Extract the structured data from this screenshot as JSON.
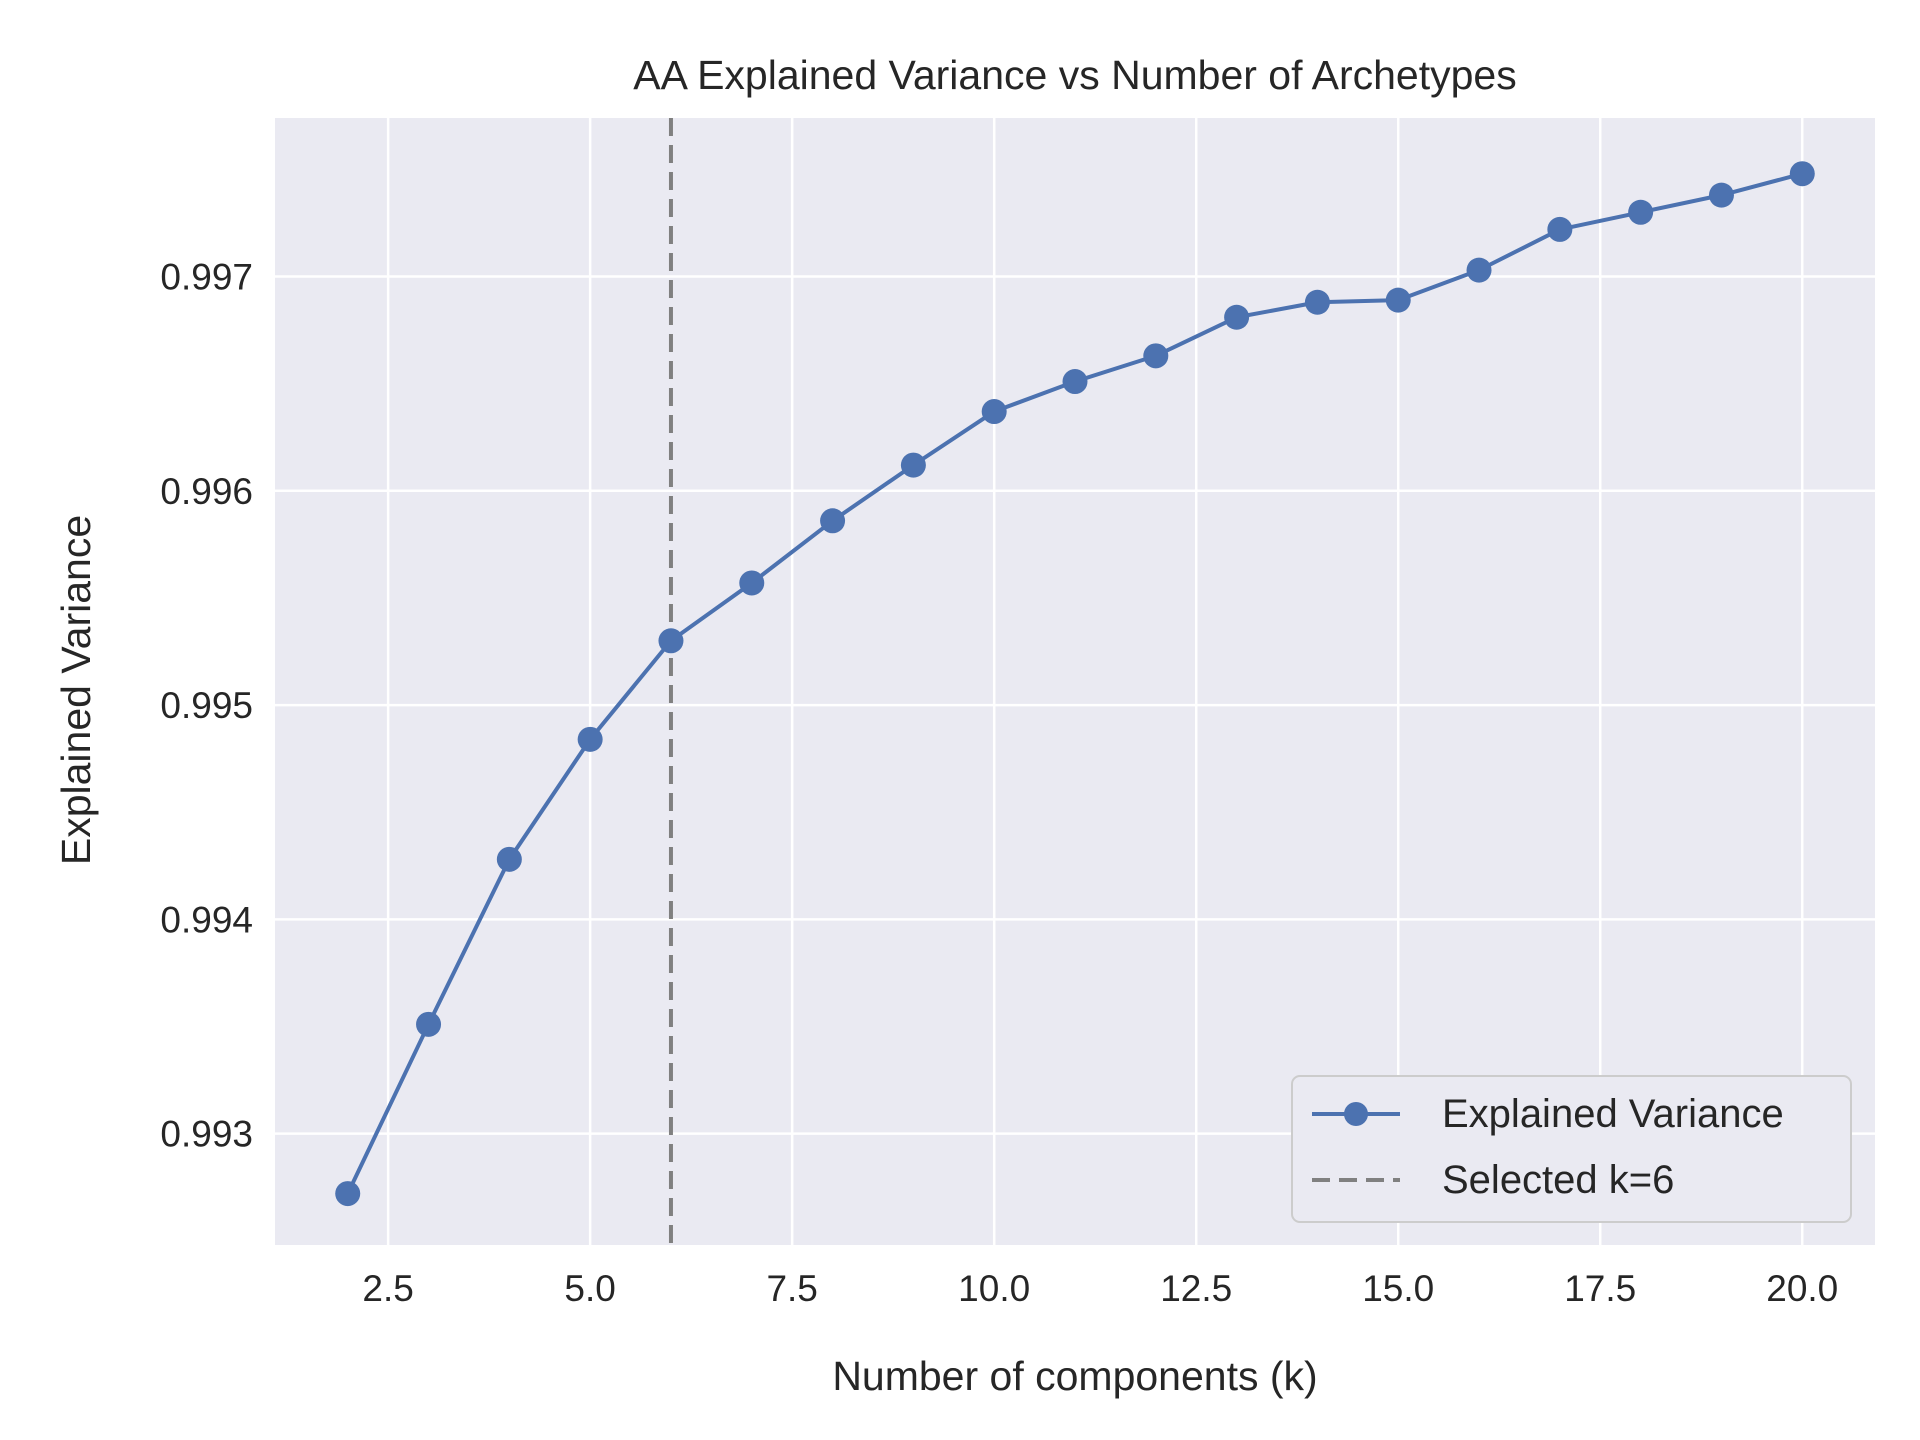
{
  "chart_data": {
    "type": "line",
    "title": "AA Explained Variance vs Number of Archetypes",
    "xlabel": "Number of components (k)",
    "ylabel": "Explained Variance",
    "xlim": [
      1.1,
      20.9
    ],
    "ylim": [
      0.99248,
      0.99774
    ],
    "xticks": [
      2.5,
      5.0,
      7.5,
      10.0,
      12.5,
      15.0,
      17.5,
      20.0
    ],
    "xtick_labels": [
      "2.5",
      "5.0",
      "7.5",
      "10.0",
      "12.5",
      "15.0",
      "17.5",
      "20.0"
    ],
    "yticks": [
      0.993,
      0.994,
      0.995,
      0.996,
      0.997
    ],
    "ytick_labels": [
      "0.993",
      "0.994",
      "0.995",
      "0.996",
      "0.997"
    ],
    "grid": true,
    "legend_position": "lower-right",
    "series": [
      {
        "name": "Explained Variance",
        "color": "#4c72b0",
        "marker": "circle",
        "x": [
          2,
          3,
          4,
          5,
          6,
          7,
          8,
          9,
          10,
          11,
          12,
          13,
          14,
          15,
          16,
          17,
          18,
          19,
          20
        ],
        "y": [
          0.99272,
          0.99351,
          0.99428,
          0.99484,
          0.9953,
          0.99557,
          0.99586,
          0.99612,
          0.99637,
          0.99651,
          0.99663,
          0.99681,
          0.99688,
          0.99689,
          0.99703,
          0.99722,
          0.9973,
          0.99738,
          0.99748
        ]
      }
    ],
    "vlines": [
      {
        "name": "Selected k=6",
        "x": 6,
        "color": "#808080",
        "style": "dashed"
      }
    ],
    "colors": {
      "background": "#eaeaf2",
      "grid": "#ffffff",
      "text": "#262626"
    }
  }
}
